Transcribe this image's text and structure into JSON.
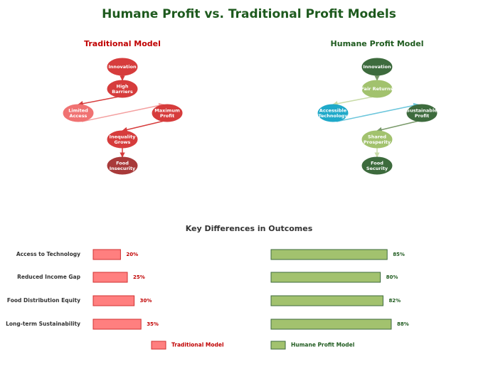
{
  "title": "Humane Profit vs. Traditional Profit Models",
  "diagrams": [
    {
      "title": "Traditional Model",
      "nodes": [
        {
          "label": "Innovation",
          "color": "#d63c3c"
        },
        {
          "label": "High Barriers",
          "color": "#d63c3c"
        },
        {
          "label": "Limited Access",
          "color": "#f07272"
        },
        {
          "label": "Maximum Profit",
          "color": "#d63c3c"
        },
        {
          "label": "Inequality Grows",
          "color": "#d63c3c"
        },
        {
          "label": "Food Insecurity",
          "color": "#a83a3a"
        }
      ]
    },
    {
      "title": "Humane Profit Model",
      "nodes": [
        {
          "label": "Innovation",
          "color": "#3d6b3d"
        },
        {
          "label": "Fair Returns",
          "color": "#a2c26e"
        },
        {
          "label": "Accessible Technology",
          "color": "#1fa9c9"
        },
        {
          "label": "Sustainable Profit",
          "color": "#3d6b3d"
        },
        {
          "label": "Shared Prosperity",
          "color": "#a2c26e"
        },
        {
          "label": "Food Security",
          "color": "#3d6b3d"
        }
      ]
    }
  ],
  "chart_data": {
    "type": "bar",
    "title": "Key Differences in Outcomes",
    "categories": [
      "Access to Technology",
      "Reduced Income Gap",
      "Food Distribution Equity",
      "Long-term Sustainability"
    ],
    "series": [
      {
        "name": "Traditional Model",
        "color": "#ff7f7f",
        "values": [
          20,
          25,
          30,
          35
        ],
        "value_labels": [
          "20%",
          "25%",
          "30%",
          "35%"
        ]
      },
      {
        "name": "Humane Profit Model",
        "color": "#a2c26e",
        "values": [
          85,
          80,
          82,
          88
        ],
        "value_labels": [
          "85%",
          "80%",
          "82%",
          "88%"
        ]
      }
    ]
  }
}
